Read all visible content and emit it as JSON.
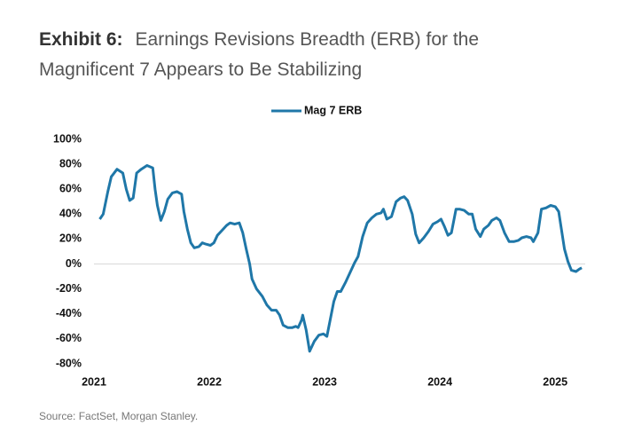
{
  "chart_data": {
    "type": "line",
    "title_label": "Exhibit 6:",
    "title": "Earnings Revisions Breadth (ERB) for the Magnificent 7 Appears to Be Stabilizing",
    "source": "Source: FactSet, Morgan Stanley.",
    "legend": "top",
    "zero_line": true,
    "x": [
      2021.05,
      2021.08,
      2021.12,
      2021.15,
      2021.2,
      2021.25,
      2021.28,
      2021.31,
      2021.34,
      2021.37,
      2021.41,
      2021.46,
      2021.51,
      2021.53,
      2021.55,
      2021.58,
      2021.61,
      2021.64,
      2021.68,
      2021.72,
      2021.76,
      2021.78,
      2021.81,
      2021.84,
      2021.87,
      2021.91,
      2021.94,
      2021.97,
      2022.01,
      2022.04,
      2022.07,
      2022.11,
      2022.15,
      2022.18,
      2022.22,
      2022.26,
      2022.29,
      2022.32,
      2022.35,
      2022.37,
      2022.41,
      2022.46,
      2022.5,
      2022.54,
      2022.58,
      2022.61,
      2022.64,
      2022.68,
      2022.72,
      2022.75,
      2022.77,
      2022.8,
      2022.81,
      2022.84,
      2022.87,
      2022.91,
      2022.95,
      2022.99,
      2023.02,
      2023.05,
      2023.08,
      2023.11,
      2023.14,
      2023.18,
      2023.22,
      2023.26,
      2023.29,
      2023.33,
      2023.37,
      2023.41,
      2023.45,
      2023.49,
      2023.51,
      2023.54,
      2023.58,
      2023.62,
      2023.66,
      2023.69,
      2023.72,
      2023.76,
      2023.79,
      2023.82,
      2023.86,
      2023.9,
      2023.94,
      2023.98,
      2024.01,
      2024.04,
      2024.07,
      2024.1,
      2024.14,
      2024.17,
      2024.21,
      2024.25,
      2024.28,
      2024.31,
      2024.35,
      2024.38,
      2024.42,
      2024.45,
      2024.49,
      2024.52,
      2024.56,
      2024.6,
      2024.64,
      2024.68,
      2024.71,
      2024.75,
      2024.79,
      2024.81,
      2024.85,
      2024.88,
      2024.92,
      2024.96,
      2025.0,
      2025.03,
      2025.05,
      2025.08,
      2025.11,
      2025.14,
      2025.18,
      2025.21,
      2025.23
    ],
    "series": [
      {
        "name": "Mag 7 ERB",
        "color": "#1f77a8",
        "values": [
          36,
          40,
          58,
          70,
          76,
          73,
          60,
          51,
          53,
          73,
          76,
          79,
          77,
          60,
          47,
          35,
          42,
          52,
          57,
          58,
          56,
          42,
          28,
          17,
          13,
          14,
          17,
          16,
          15,
          17,
          23,
          27,
          31,
          33,
          32,
          33,
          25,
          12,
          0,
          -12,
          -20,
          -26,
          -33,
          -37,
          -37,
          -41,
          -49,
          -51,
          -51,
          -50,
          -51,
          -45,
          -41,
          -53,
          -70,
          -62,
          -57,
          -56,
          -58,
          -44,
          -30,
          -22,
          -22,
          -15,
          -7,
          1,
          6,
          22,
          33,
          37,
          40,
          41,
          44,
          36,
          38,
          50,
          53,
          54,
          51,
          40,
          24,
          17,
          21,
          26,
          32,
          34,
          36,
          30,
          23,
          25,
          44,
          44,
          43,
          40,
          40,
          28,
          22,
          28,
          31,
          35,
          37,
          35,
          25,
          18,
          18,
          19,
          21,
          22,
          21,
          18,
          25,
          44,
          45,
          47,
          46,
          42,
          30,
          12,
          2,
          -5,
          -6,
          -4,
          -3
        ]
      }
    ],
    "xlim": [
      2021,
      2025.26
    ],
    "xticks": [
      2021,
      2022,
      2023,
      2024,
      2025
    ],
    "ylim": [
      -80,
      100
    ],
    "yticks": [
      {
        "value": -80,
        "label": "-80%"
      },
      {
        "value": -60,
        "label": "-60%"
      },
      {
        "value": -40,
        "label": "-40%"
      },
      {
        "value": -20,
        "label": "-20%"
      },
      {
        "value": 0,
        "label": "0%"
      },
      {
        "value": 20,
        "label": "20%"
      },
      {
        "value": 40,
        "label": "40%"
      },
      {
        "value": 60,
        "label": "60%"
      },
      {
        "value": 80,
        "label": "80%"
      },
      {
        "value": 100,
        "label": "100%"
      }
    ]
  }
}
